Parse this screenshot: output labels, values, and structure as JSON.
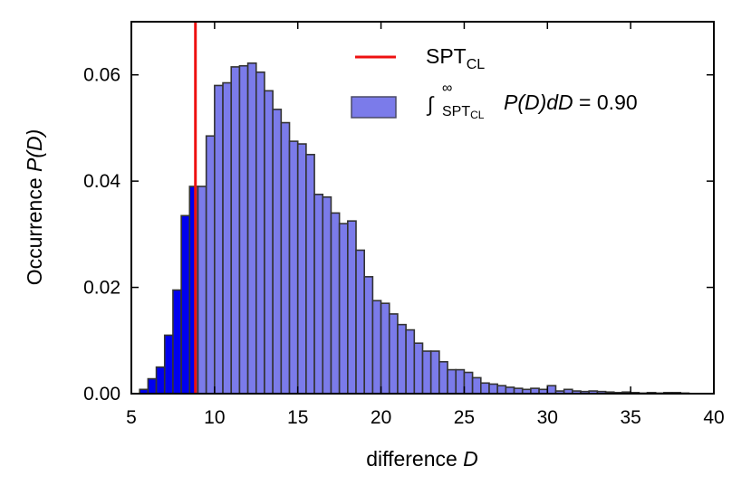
{
  "chart_data": {
    "type": "bar",
    "title": "",
    "xlabel": {
      "prefix": "difference ",
      "variable": "D"
    },
    "ylabel": {
      "prefix": "Occurrence ",
      "variable": "P(D)"
    },
    "xlim": [
      5,
      40
    ],
    "ylim": [
      0,
      0.07
    ],
    "xticks": [
      5,
      10,
      15,
      20,
      25,
      30,
      35,
      40
    ],
    "xtick_labels": [
      "5",
      "10",
      "15",
      "20",
      "25",
      "30",
      "35",
      "40"
    ],
    "yticks": [
      0,
      0.02,
      0.04,
      0.06
    ],
    "ytick_labels": [
      "0.00",
      "0.02",
      "0.04",
      "0.06"
    ],
    "bin_width": 0.5,
    "bins_left_edge": [
      5.5,
      6.0,
      6.5,
      7.0,
      7.5,
      8.0,
      8.5,
      9.0,
      9.5,
      10.0,
      10.5,
      11.0,
      11.5,
      12.0,
      12.5,
      13.0,
      13.5,
      14.0,
      14.5,
      15.0,
      15.5,
      16.0,
      16.5,
      17.0,
      17.5,
      18.0,
      18.5,
      19.0,
      19.5,
      20.0,
      20.5,
      21.0,
      21.5,
      22.0,
      22.5,
      23.0,
      23.5,
      24.0,
      24.5,
      25.0,
      25.5,
      26.0,
      26.5,
      27.0,
      27.5,
      28.0,
      28.5,
      29.0,
      29.5,
      30.0,
      30.5,
      31.0,
      31.5,
      32.0,
      32.5,
      33.0,
      33.5,
      34.0,
      34.5,
      35.0,
      35.5,
      36.0,
      36.5,
      37.0,
      37.5,
      38.0
    ],
    "values": [
      0.0008,
      0.0028,
      0.005,
      0.011,
      0.0195,
      0.0335,
      0.039,
      0.039,
      0.0485,
      0.058,
      0.0585,
      0.0615,
      0.0617,
      0.0622,
      0.0605,
      0.057,
      0.0535,
      0.051,
      0.0475,
      0.047,
      0.045,
      0.0375,
      0.037,
      0.034,
      0.032,
      0.0325,
      0.027,
      0.022,
      0.0175,
      0.017,
      0.015,
      0.013,
      0.012,
      0.0095,
      0.008,
      0.008,
      0.006,
      0.0045,
      0.0045,
      0.004,
      0.003,
      0.002,
      0.0018,
      0.0015,
      0.0012,
      0.001,
      0.0008,
      0.001,
      0.0008,
      0.0015,
      0.0005,
      0.0008,
      0.0005,
      0.0004,
      0.0005,
      0.0004,
      0.0003,
      0.0002,
      0.0003,
      0.0002,
      0.0001,
      0.0002,
      0.0001,
      0.0002,
      0.0002,
      0.0001
    ],
    "threshold": 8.85,
    "series": [
      {
        "name": "below-threshold",
        "color": "#0000ee"
      },
      {
        "name": "above-threshold",
        "color": "#7b7bea"
      }
    ],
    "threshold_color": "#ee1111",
    "legend": [
      {
        "label": "SPT",
        "subscript": "CL",
        "kind": "line",
        "color": "#ee1111"
      },
      {
        "label_prefix": "∫",
        "lower": "SPT",
        "lower_sub": "CL",
        "upper": "∞",
        "expression": "P(D)dD",
        "value": " = 0.90",
        "kind": "patch",
        "color": "#7b7bea"
      }
    ],
    "legend_position": "upper-right"
  }
}
